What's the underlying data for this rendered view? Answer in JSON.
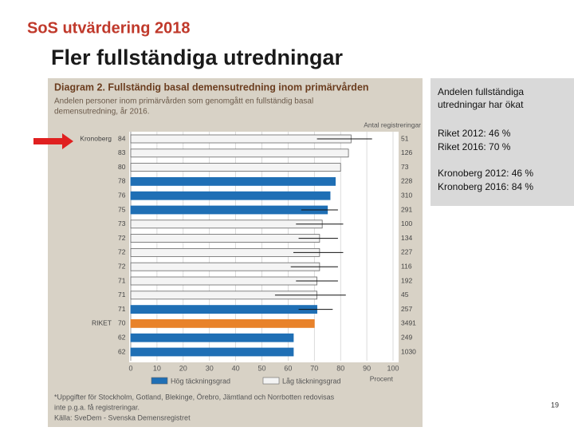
{
  "header": {
    "logo": "SoS utvärdering 2018",
    "title": "Fler fullständiga utredningar",
    "page_number": "19"
  },
  "side_box": {
    "heading": "Andelen fullständiga utredningar har ökat",
    "lines": [
      "Riket 2012: 46 %",
      "Riket 2016: 70 %",
      "Kronoberg 2012: 46 %",
      "Kronoberg 2016: 84 %"
    ]
  },
  "chart_data": {
    "type": "hbar",
    "title": "Diagram 2. Fullständig basal demensutredning inom primärvården",
    "subtitle": [
      "Andelen personer inom primärvården som genomgått en fullständig basal",
      "demensutredning, år 2016."
    ],
    "categories": [
      "Kronoberg",
      null,
      null,
      null,
      null,
      null,
      null,
      null,
      null,
      null,
      null,
      null,
      null,
      "RIKET",
      null,
      null
    ],
    "values": [
      84,
      83,
      80,
      78,
      76,
      75,
      73,
      72,
      72,
      72,
      71,
      71,
      71,
      70,
      62,
      62
    ],
    "colors": [
      "#f4f4f4",
      "#f4f4f4",
      "#f4f4f4",
      "#1f6fb5",
      "#1f6fb5",
      "#1f6fb5",
      "#f4f4f4",
      "#f4f4f4",
      "#f4f4f4",
      "#f4f4f4",
      "#f4f4f4",
      "#f4f4f4",
      "#1f6fb5",
      "#e8822a",
      "#1f6fb5",
      "#1f6fb5"
    ],
    "error_low": [
      71,
      null,
      null,
      null,
      null,
      65,
      63,
      64,
      62,
      61,
      63,
      55,
      64,
      null,
      null,
      null
    ],
    "error_high": [
      92,
      null,
      null,
      null,
      null,
      79,
      81,
      79,
      81,
      79,
      79,
      82,
      77,
      null,
      null,
      null
    ],
    "registrations_label": "Antal registreringar",
    "registrations": [
      51,
      126,
      73,
      228,
      310,
      291,
      100,
      134,
      227,
      116,
      192,
      45,
      257,
      3491,
      249,
      1030
    ],
    "xlim": [
      0,
      100
    ],
    "xticks": [
      0,
      10,
      20,
      30,
      40,
      50,
      60,
      70,
      80,
      90,
      100
    ],
    "grid": true,
    "xlabel": "Procent",
    "legend": [
      {
        "name": "Hög täckningsgrad",
        "color": "#1f6fb5"
      },
      {
        "name": "Låg täckningsgrad",
        "color": "#f4f4f4"
      }
    ],
    "footnote": [
      "*Uppgifter för Stockholm, Gotland, Blekinge, Örebro, Jämtland och Norrbotten redovisas",
      "inte p.g.a. få registreringar.",
      "Källa: SveDem - Svenska Demensregistret"
    ]
  }
}
